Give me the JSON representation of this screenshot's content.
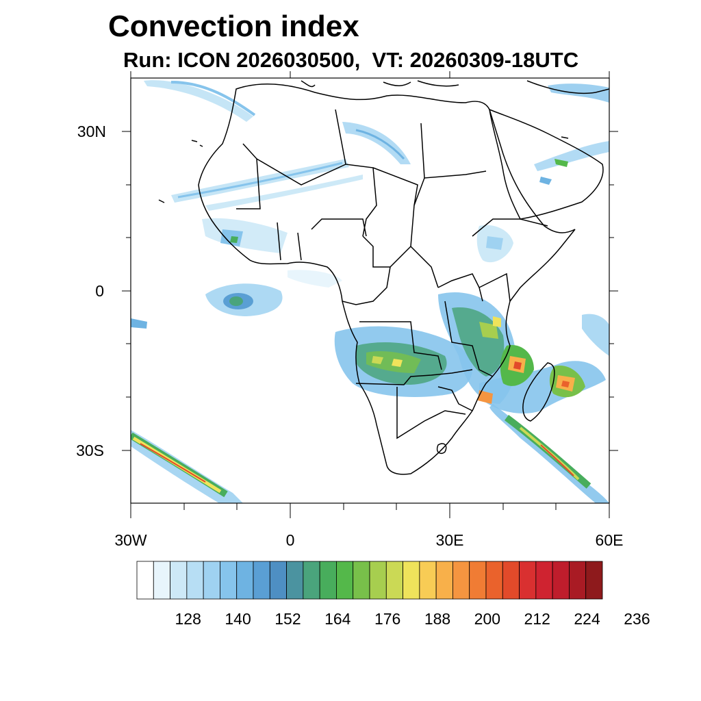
{
  "title": "Convection index",
  "subtitle": "Run: ICON 2026030500,  VT: 20260309-18UTC",
  "map": {
    "region": "Africa",
    "lon_range": [
      -30,
      60
    ],
    "lat_range": [
      -40,
      40
    ],
    "lat_ticks": [
      {
        "value": 30,
        "label": "30N"
      },
      {
        "value": 0,
        "label": "0"
      },
      {
        "value": -30,
        "label": "30S"
      }
    ],
    "lon_ticks": [
      {
        "value": -30,
        "label": "30W"
      },
      {
        "value": 0,
        "label": "0"
      },
      {
        "value": 30,
        "label": "30E"
      },
      {
        "value": 60,
        "label": "60E"
      }
    ]
  },
  "colorbar": {
    "colors": [
      "#ffffff",
      "#e8f5fc",
      "#cde9f7",
      "#b7def4",
      "#9fd2f1",
      "#86c4ec",
      "#6eb3e2",
      "#5a9fd4",
      "#4e8fc3",
      "#4b93a0",
      "#4aa47c",
      "#48ad5c",
      "#54b84a",
      "#78c04a",
      "#a7ce4f",
      "#cbd955",
      "#efe35b",
      "#f8cc55",
      "#f8b04a",
      "#f59540",
      "#f07c34",
      "#ea622c",
      "#e24a2a",
      "#d93030",
      "#cf2330",
      "#bf1d2c",
      "#a91b24",
      "#8e1a1c"
    ],
    "labels": [
      "128",
      "140",
      "152",
      "164",
      "176",
      "188",
      "200",
      "212",
      "224",
      "236"
    ]
  }
}
